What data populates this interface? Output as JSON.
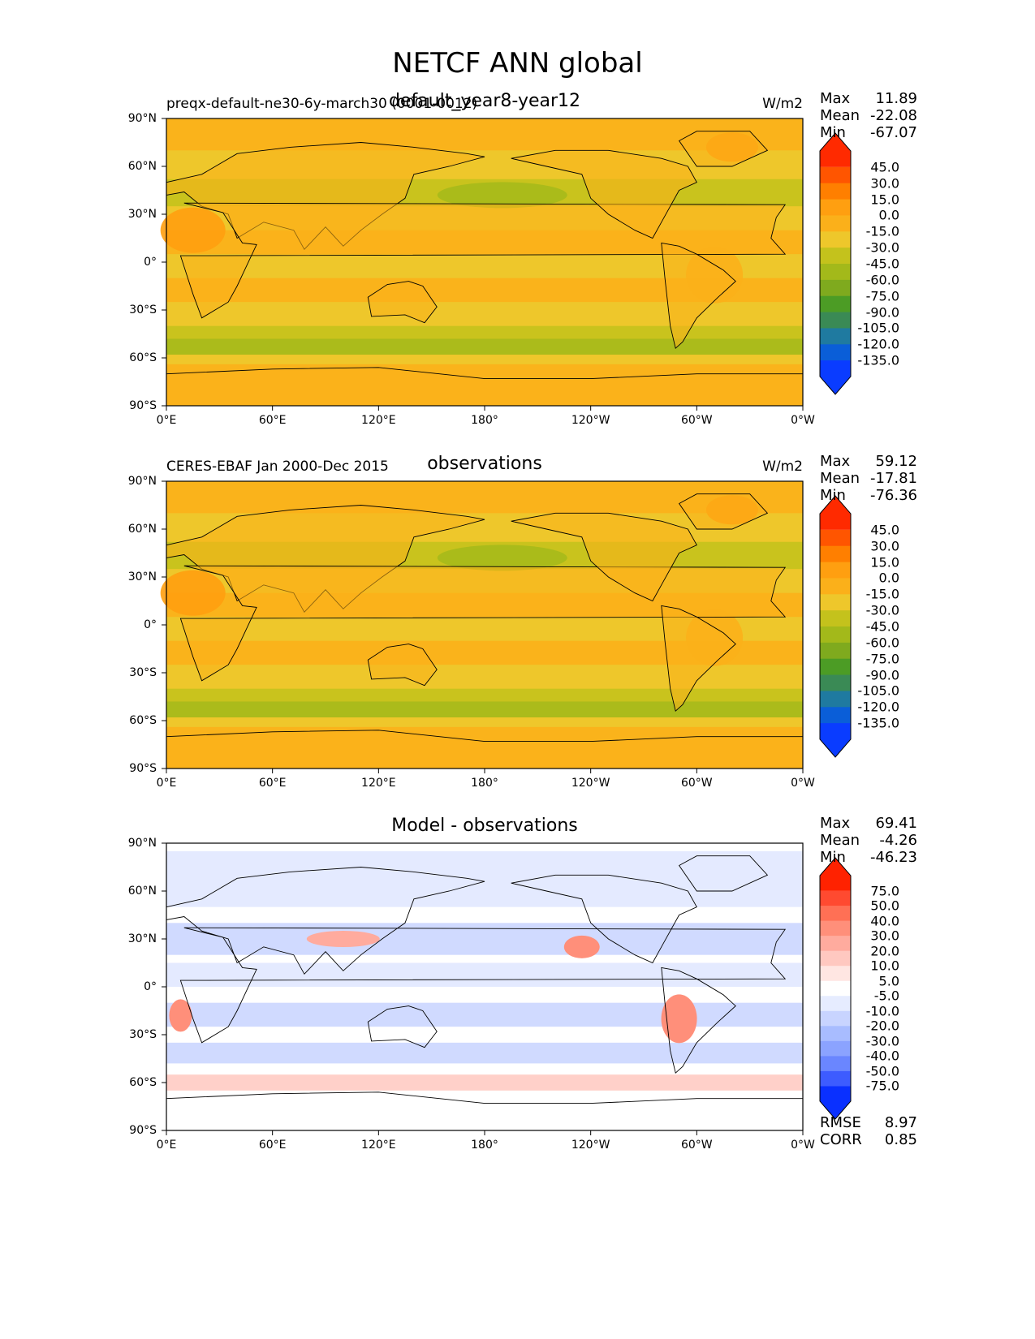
{
  "title": "NETCF ANN global",
  "chart_data": [
    {
      "type": "heatmap",
      "panel": "test",
      "left_label": "preqx-default-ne30-6y-march30 (0001-0012)",
      "center_label": "default_year8-year12",
      "units": "W/m2",
      "stats": {
        "Max": "11.89",
        "Mean": "-22.08",
        "Min": "-67.07"
      },
      "colorbar": {
        "labels": [
          "45.0",
          "30.0",
          "15.0",
          "0.0",
          "-15.0",
          "-30.0",
          "-45.0",
          "-60.0",
          "-75.0",
          "-90.0",
          "-105.0",
          "-120.0",
          "-135.0"
        ],
        "colors": [
          "#ff2a00",
          "#ff5500",
          "#ff7f00",
          "#ff9f10",
          "#fbb01a",
          "#eec72b",
          "#c4c21c",
          "#a3b91a",
          "#7faa1e",
          "#4c9c25",
          "#3a8a55",
          "#1f7aa0",
          "#0a5ed8",
          "#0a3cff"
        ]
      },
      "x_ticks": [
        "0°E",
        "60°E",
        "120°E",
        "180°",
        "120°W",
        "60°W",
        "0°W"
      ],
      "y_ticks": [
        "90°N",
        "60°N",
        "30°N",
        "0°",
        "30°S",
        "60°S",
        "90°S"
      ]
    },
    {
      "type": "heatmap",
      "panel": "reference",
      "left_label": "CERES-EBAF Jan 2000-Dec 2015",
      "center_label": "observations",
      "units": "W/m2",
      "stats": {
        "Max": "59.12",
        "Mean": "-17.81",
        "Min": "-76.36"
      },
      "colorbar": {
        "labels": [
          "45.0",
          "30.0",
          "15.0",
          "0.0",
          "-15.0",
          "-30.0",
          "-45.0",
          "-60.0",
          "-75.0",
          "-90.0",
          "-105.0",
          "-120.0",
          "-135.0"
        ],
        "colors": [
          "#ff2a00",
          "#ff5500",
          "#ff7f00",
          "#ff9f10",
          "#fbb01a",
          "#eec72b",
          "#c4c21c",
          "#a3b91a",
          "#7faa1e",
          "#4c9c25",
          "#3a8a55",
          "#1f7aa0",
          "#0a5ed8",
          "#0a3cff"
        ]
      },
      "x_ticks": [
        "0°E",
        "60°E",
        "120°E",
        "180°",
        "120°W",
        "60°W",
        "0°W"
      ],
      "y_ticks": [
        "90°N",
        "60°N",
        "30°N",
        "0°",
        "30°S",
        "60°S",
        "90°S"
      ]
    },
    {
      "type": "heatmap",
      "panel": "difference",
      "left_label": "",
      "center_label": "Model - observations",
      "units": "",
      "stats": {
        "Max": "69.41",
        "Mean": "-4.26",
        "Min": "-46.23"
      },
      "metrics": {
        "RMSE": "8.97",
        "CORR": "0.85"
      },
      "colorbar": {
        "labels": [
          "75.0",
          "50.0",
          "40.0",
          "30.0",
          "20.0",
          "10.0",
          "5.0",
          "-5.0",
          "-10.0",
          "-20.0",
          "-30.0",
          "-40.0",
          "-50.0",
          "-75.0"
        ],
        "colors": [
          "#ff2200",
          "#ff4a30",
          "#ff7055",
          "#ff8f7a",
          "#ffab9e",
          "#ffc8c0",
          "#ffe6e2",
          "#ffffff",
          "#e6ecff",
          "#c8d4ff",
          "#a8bcff",
          "#8ba3ff",
          "#6a86ff",
          "#3d5cff",
          "#0a30ff"
        ]
      },
      "x_ticks": [
        "0°E",
        "60°E",
        "120°E",
        "180°",
        "120°W",
        "60°W",
        "0°W"
      ],
      "y_ticks": [
        "90°N",
        "60°N",
        "30°N",
        "0°",
        "30°S",
        "60°S",
        "90°S"
      ]
    }
  ]
}
